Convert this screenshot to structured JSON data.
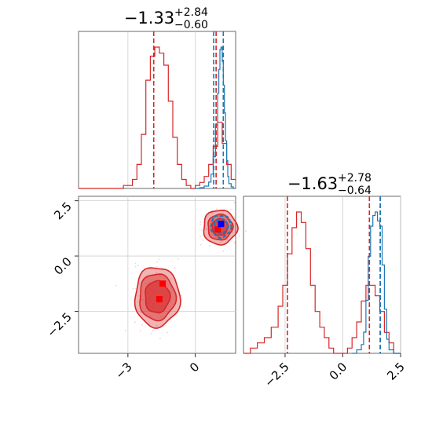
{
  "chart_data": {
    "type": "corner",
    "parameters": [
      "",
      ""
    ],
    "titles": [
      {
        "value": "−1.33",
        "upper": "+2.84",
        "lower": "−0.60"
      },
      {
        "value": "−1.63",
        "upper": "+2.78",
        "lower": "−0.64"
      }
    ],
    "axes": {
      "x0": {
        "range": [
          -5.2,
          1.8
        ],
        "ticks": [
          -3,
          0
        ],
        "tick_labels": [
          "−3",
          "0"
        ]
      },
      "x1": {
        "range": [
          -4.3,
          2.5
        ],
        "ticks": [
          -2.5,
          0.0,
          2.5
        ],
        "tick_labels": [
          "−2.5",
          "0.0",
          "2.5"
        ]
      },
      "y1": {
        "range": [
          -4.4,
          2.7
        ],
        "ticks": [
          2.5,
          0.0,
          -2.5
        ],
        "tick_labels": [
          "2.5",
          "0.0",
          "−2.5"
        ]
      }
    },
    "grid": true,
    "series": [
      {
        "color": "#d62728",
        "hist_x0": {
          "bins": [
            -5.2,
            -4.8,
            -4.4,
            -4.0,
            -3.6,
            -3.2,
            -2.8,
            -2.6,
            -2.4,
            -2.2,
            -2.0,
            -1.8,
            -1.6,
            -1.4,
            -1.2,
            -1.0,
            -0.8,
            -0.6,
            -0.4,
            -0.2,
            0.0,
            0.2,
            0.4,
            0.6,
            0.8,
            1.0,
            1.2,
            1.4,
            1.6,
            1.8
          ],
          "counts": [
            0,
            0,
            0,
            0,
            0,
            1,
            3,
            8,
            18,
            36,
            44,
            47,
            45,
            41,
            29,
            17,
            8,
            3,
            1,
            0,
            1,
            2,
            4,
            8,
            14,
            22,
            15,
            8,
            3
          ]
        },
        "hist_x1": {
          "bins": [
            -4.3,
            -4.0,
            -3.7,
            -3.4,
            -3.1,
            -2.8,
            -2.6,
            -2.4,
            -2.2,
            -2.0,
            -1.8,
            -1.6,
            -1.4,
            -1.2,
            -1.0,
            -0.8,
            -0.6,
            -0.4,
            -0.2,
            0.0,
            0.2,
            0.4,
            0.6,
            0.8,
            1.0,
            1.2,
            1.4,
            1.6,
            1.8,
            2.0,
            2.2,
            2.5
          ],
          "counts": [
            0,
            1,
            2,
            3,
            5,
            9,
            13,
            19,
            24,
            27,
            25,
            20,
            13,
            8,
            5,
            3,
            1,
            0,
            0,
            0,
            1,
            3,
            6,
            10,
            13,
            13,
            11,
            8,
            4,
            2,
            0
          ]
        },
        "quantiles_x0": [
          -1.85,
          0.93
        ],
        "quantiles_x1": [
          -2.4,
          1.15
        ],
        "contours": [
          {
            "cx": -1.7,
            "cy": -1.85,
            "rx": [
              1.0,
              0.8,
              0.55
            ],
            "ry": [
              1.35,
              1.05,
              0.72
            ]
          },
          {
            "cx": 1.1,
            "cy": 1.3,
            "rx": [
              0.75,
              0.55,
              0.35
            ],
            "ry": [
              0.78,
              0.58,
              0.38
            ]
          }
        ],
        "markers": [
          [
            -1.45,
            -1.25
          ],
          [
            -1.6,
            -1.95
          ],
          [
            1.0,
            1.2
          ]
        ]
      },
      {
        "color": "#1f77b4",
        "hist_x0": {
          "bins": [
            0.0,
            0.2,
            0.4,
            0.6,
            0.7,
            0.8,
            0.9,
            1.0,
            1.05,
            1.1,
            1.15,
            1.2,
            1.25,
            1.3,
            1.35,
            1.4,
            1.45,
            1.5,
            1.6,
            1.7,
            1.8
          ],
          "counts": [
            0,
            1,
            3,
            8,
            18,
            40,
            80,
            120,
            150,
            175,
            178,
            160,
            130,
            95,
            60,
            35,
            15,
            6,
            2,
            0
          ]
        },
        "hist_x1": {
          "bins": [
            0.4,
            0.6,
            0.8,
            0.9,
            1.0,
            1.1,
            1.2,
            1.3,
            1.4,
            1.5,
            1.6,
            1.7,
            1.8,
            1.9,
            2.0,
            2.2,
            2.5
          ],
          "counts": [
            0,
            2,
            5,
            12,
            30,
            55,
            72,
            78,
            80,
            75,
            72,
            50,
            25,
            8,
            2,
            0
          ]
        },
        "quantiles_x0": [
          0.82,
          1.25
        ],
        "quantiles_x1": [
          1.62,
          1.62
        ],
        "contours": [
          {
            "cx": 1.15,
            "cy": 1.35,
            "rx": [
              0.45,
              0.3
            ],
            "ry": [
              0.5,
              0.32
            ]
          }
        ],
        "markers": [
          [
            1.15,
            1.45
          ]
        ]
      }
    ]
  }
}
